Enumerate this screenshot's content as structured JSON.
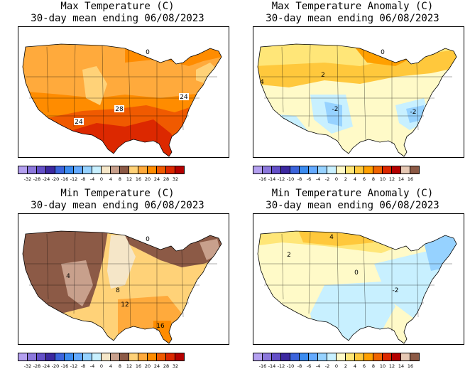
{
  "panels": [
    {
      "title_line1": "Max Temperature (C)",
      "title_line2": "30-day mean ending 06/08/2023",
      "scale": [
        "-32",
        "-28",
        "-24",
        "-20",
        "-16",
        "-12",
        "-8",
        "-4",
        "0",
        "4",
        "8",
        "12",
        "16",
        "20",
        "24",
        "28",
        "32"
      ],
      "scale_colors": [
        "#b4a0f0",
        "#8c78dc",
        "#6450c8",
        "#3c28a0",
        "#3c64dc",
        "#3c8cf0",
        "#64aaff",
        "#96d2ff",
        "#c8f0ff",
        "#f5e6c8",
        "#c8a08c",
        "#8c5a46",
        "#ffd278",
        "#ffaa3c",
        "#ff8c00",
        "#f05a00",
        "#dc2800",
        "#b40000"
      ],
      "map_labels": [
        "24",
        "24",
        "28",
        "0"
      ]
    },
    {
      "title_line1": "Max Temperature Anomaly (C)",
      "title_line2": "30-day mean ending 06/08/2023",
      "scale": [
        "-16",
        "-14",
        "-12",
        "-10",
        "-8",
        "-6",
        "-4",
        "-2",
        "0",
        "2",
        "4",
        "6",
        "8",
        "10",
        "12",
        "14",
        "16"
      ],
      "scale_colors": [
        "#b4a0f0",
        "#8c78dc",
        "#6450c8",
        "#3c28a0",
        "#3c64dc",
        "#3c8cf0",
        "#64aaff",
        "#96d2ff",
        "#c8f0ff",
        "#fffac8",
        "#ffe678",
        "#ffc83c",
        "#ffa000",
        "#f06400",
        "#dc2800",
        "#b40000",
        "#e6c8b4",
        "#8c5a46"
      ],
      "map_labels": [
        "2",
        "-2",
        "4",
        "-2",
        "0"
      ]
    },
    {
      "title_line1": "Min Temperature (C)",
      "title_line2": "30-day mean ending 06/08/2023",
      "scale": [
        "-32",
        "-28",
        "-24",
        "-20",
        "-16",
        "-12",
        "-8",
        "-4",
        "0",
        "4",
        "8",
        "12",
        "16",
        "20",
        "24",
        "28",
        "32"
      ],
      "scale_colors": [
        "#b4a0f0",
        "#8c78dc",
        "#6450c8",
        "#3c28a0",
        "#3c64dc",
        "#3c8cf0",
        "#64aaff",
        "#96d2ff",
        "#c8f0ff",
        "#f5e6c8",
        "#c8a08c",
        "#8c5a46",
        "#ffd278",
        "#ffaa3c",
        "#ff8c00",
        "#f05a00",
        "#dc2800",
        "#b40000"
      ],
      "map_labels": [
        "8",
        "12",
        "16",
        "4",
        "0"
      ]
    },
    {
      "title_line1": "Min Temperature Anomaly (C)",
      "title_line2": "30-day mean ending 06/08/2023",
      "scale": [
        "-16",
        "-14",
        "-12",
        "-10",
        "-8",
        "-6",
        "-4",
        "-2",
        "0",
        "2",
        "4",
        "6",
        "8",
        "10",
        "12",
        "14",
        "16"
      ],
      "scale_colors": [
        "#b4a0f0",
        "#8c78dc",
        "#6450c8",
        "#3c28a0",
        "#3c64dc",
        "#3c8cf0",
        "#64aaff",
        "#96d2ff",
        "#c8f0ff",
        "#fffac8",
        "#ffe678",
        "#ffc83c",
        "#ffa000",
        "#f06400",
        "#dc2800",
        "#b40000",
        "#e6c8b4",
        "#8c5a46"
      ],
      "map_labels": [
        "2",
        "0",
        "-2",
        "4"
      ]
    }
  ]
}
